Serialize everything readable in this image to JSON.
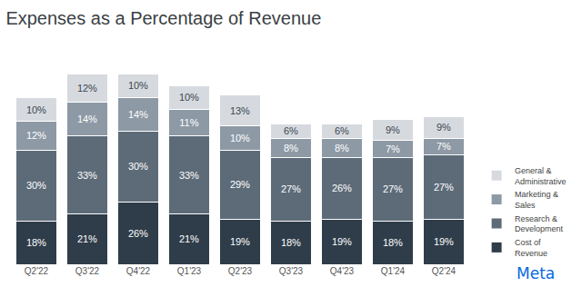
{
  "chart_data": {
    "type": "bar",
    "title": "Expenses as a Percentage of Revenue",
    "annotations": [
      "Meta"
    ],
    "categories": [
      "Q2'22",
      "Q3'22",
      "Q4'22",
      "Q1'23",
      "Q2'23",
      "Q3'23",
      "Q4'23",
      "Q1'24",
      "Q2'24"
    ],
    "stacked": true,
    "data_labels": true,
    "tick_labels": "x",
    "grid": false,
    "legend": "lower right",
    "ylim": [
      0,
      90
    ],
    "series": [
      {
        "name": "Cost of Revenue",
        "color": "#2f3d4a",
        "values": [
          18,
          21,
          26,
          21,
          19,
          18,
          19,
          18,
          19
        ],
        "value_labels": [
          "18%",
          "21%",
          "26%",
          "21%",
          "19%",
          "18%",
          "19%",
          "18%",
          "19%"
        ]
      },
      {
        "name": "Research & Development",
        "color": "#5d6b78",
        "values": [
          30,
          33,
          30,
          33,
          29,
          27,
          26,
          27,
          27
        ],
        "value_labels": [
          "30%",
          "33%",
          "30%",
          "33%",
          "29%",
          "27%",
          "26%",
          "27%",
          "27%"
        ]
      },
      {
        "name": "Marketing & Sales",
        "color": "#8d99a5",
        "values": [
          12,
          14,
          14,
          11,
          10,
          8,
          8,
          7,
          7
        ],
        "value_labels": [
          "12%",
          "14%",
          "14%",
          "11%",
          "10%",
          "8%",
          "8%",
          "7%",
          "7%"
        ]
      },
      {
        "name": "General & Administrative",
        "color": "#d6dadf",
        "values": [
          10,
          12,
          10,
          10,
          13,
          6,
          6,
          9,
          9
        ],
        "value_labels": [
          "10%",
          "12%",
          "10%",
          "10%",
          "13%",
          "6%",
          "6%",
          "9%",
          "9%"
        ]
      }
    ]
  }
}
